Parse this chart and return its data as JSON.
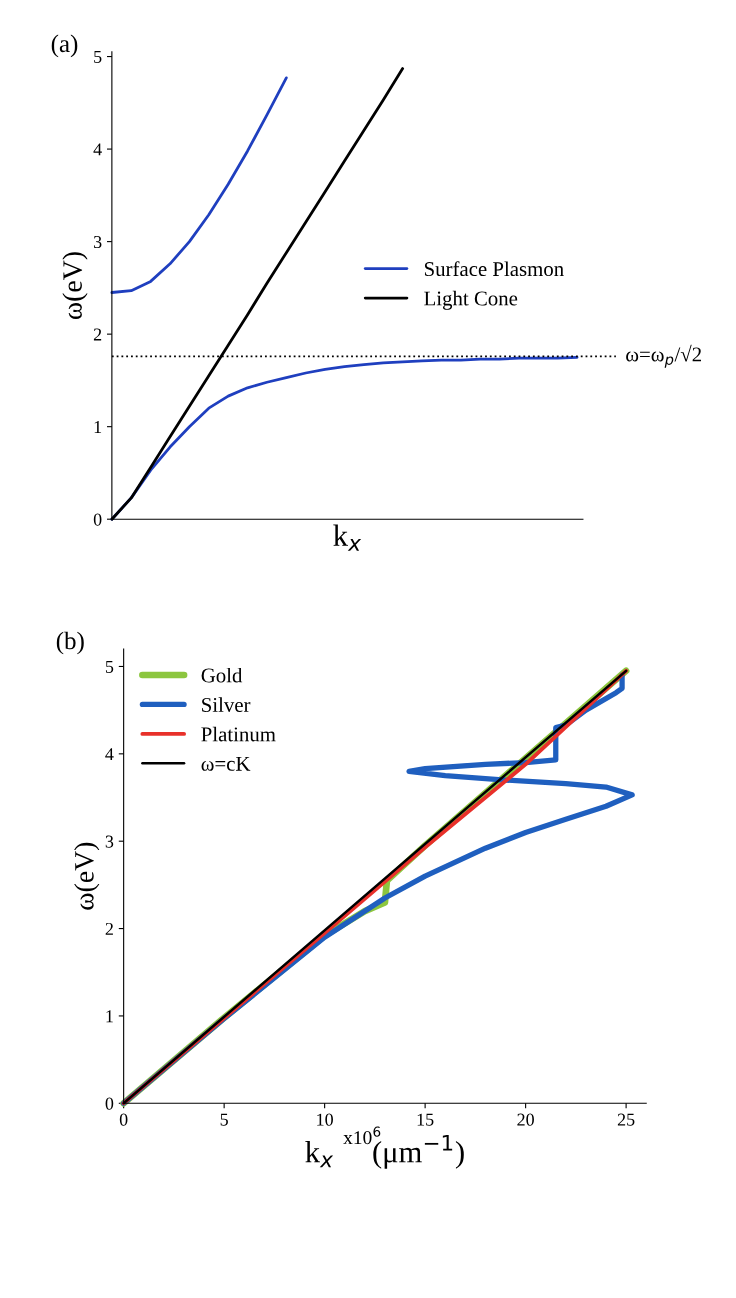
{
  "chart_data": [
    {
      "type": "line",
      "xlabel": "k$_{x}$",
      "ylabel": "ω(eV)",
      "annotations": [
        "(a)"
      ],
      "categories": [
        null,
        null,
        null,
        null,
        null,
        null,
        null,
        null,
        null,
        null,
        null,
        null,
        null,
        null,
        null,
        null,
        null,
        null,
        null,
        null,
        null,
        null,
        null,
        null,
        null
      ],
      "series": [
        {
          "name": "Surface Plasmon",
          "color": "#1f3fbf",
          "values": [
            2.45,
            2.47,
            2.57,
            2.76,
            3.0,
            3.29,
            3.62,
            3.98,
            4.37,
            4.77,
            null,
            null,
            null,
            null,
            null,
            null,
            null,
            null,
            null,
            null,
            null,
            null,
            null,
            null,
            null
          ]
        },
        {
          "color": "#1f3fbf",
          "values": [
            0,
            0.23,
            0.53,
            0.78,
            1.0,
            1.2,
            1.33,
            1.42,
            1.48,
            1.53,
            1.58,
            1.62,
            1.65,
            1.67,
            1.69,
            1.7,
            1.71,
            1.72,
            1.72,
            1.73,
            1.73,
            1.74,
            1.74,
            1.74,
            1.75
          ]
        },
        {
          "name": "Light Cone",
          "color": "#000000",
          "values": [
            0,
            0.23,
            0.56,
            0.89,
            1.22,
            1.55,
            1.88,
            2.21,
            2.55,
            2.88,
            3.21,
            3.54,
            3.87,
            4.2,
            4.53,
            4.87,
            null,
            null,
            null,
            null,
            null,
            null,
            null,
            null,
            null
          ]
        }
      ],
      "ylim": [
        0,
        5.05
      ],
      "yticks": [
        0,
        1,
        2,
        3,
        4,
        5
      ],
      "tick_labels": "y",
      "legend": "center right",
      "ref_lines": [
        {
          "axis": "y",
          "value": 1.76,
          "label": "ω=ω$_{p}$/√2",
          "color": "#000000",
          "line_style": "dotted"
        }
      ]
    },
    {
      "type": "line",
      "xlabel": "k$_{x}$     (μm$^{−1}$)",
      "ylabel": "ω(eV)",
      "annotations": [
        "(b)",
        "x10$^{6}$"
      ],
      "series": [
        {
          "name": "Gold",
          "color": "#8cc63f",
          "x": [
            0,
            5,
            10,
            12,
            13,
            13.1,
            15,
            20,
            25
          ],
          "values": [
            0,
            0.98,
            1.92,
            2.2,
            2.3,
            2.55,
            2.95,
            3.95,
            4.95
          ]
        },
        {
          "name": "Silver",
          "color": "#1f5fbf",
          "x": [
            0,
            5,
            10,
            13,
            15,
            18,
            20,
            22,
            24,
            25.3,
            24,
            22,
            19,
            16,
            14.2,
            15,
            18,
            20,
            21.5,
            21.5,
            22,
            23,
            24.5,
            24.8,
            24.8
          ],
          "values": [
            0,
            0.97,
            1.9,
            2.35,
            2.6,
            2.92,
            3.1,
            3.25,
            3.4,
            3.53,
            3.62,
            3.66,
            3.7,
            3.75,
            3.8,
            3.83,
            3.88,
            3.9,
            3.93,
            4.3,
            4.33,
            4.5,
            4.7,
            4.75,
            4.9
          ]
        },
        {
          "name": "Platinum",
          "color": "#e8302a",
          "x": [
            0,
            10,
            15,
            20,
            25
          ],
          "values": [
            0,
            1.95,
            2.93,
            3.88,
            4.95
          ]
        },
        {
          "name": "ω=cK",
          "color": "#000000",
          "x": [
            0,
            25
          ],
          "values": [
            0,
            4.95
          ]
        }
      ],
      "xlim": [
        0,
        26
      ],
      "xticks": [
        0,
        5,
        10,
        15,
        20,
        25
      ],
      "ylim": [
        0,
        5.2
      ],
      "yticks": [
        0,
        1,
        2,
        3,
        4,
        5
      ],
      "legend": "upper left"
    }
  ]
}
